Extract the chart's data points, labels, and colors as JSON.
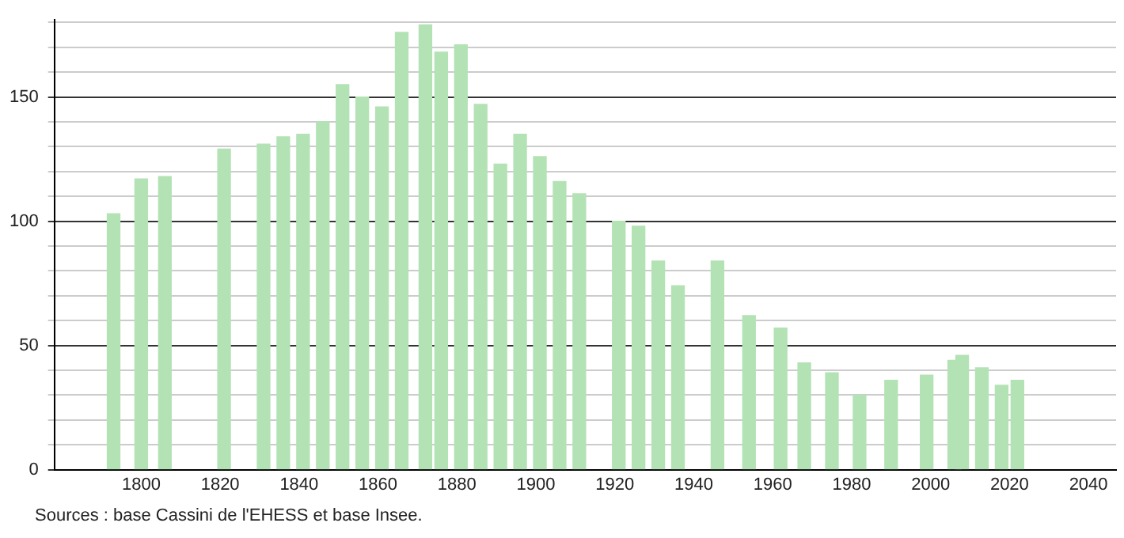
{
  "chart_data": {
    "type": "bar",
    "x": [
      1793,
      1800,
      1806,
      1821,
      1831,
      1836,
      1841,
      1846,
      1851,
      1856,
      1861,
      1866,
      1872,
      1876,
      1881,
      1886,
      1891,
      1896,
      1901,
      1906,
      1911,
      1921,
      1926,
      1931,
      1936,
      1946,
      1954,
      1962,
      1968,
      1975,
      1982,
      1990,
      1999,
      2006,
      2008,
      2013,
      2018,
      2022
    ],
    "values": [
      103,
      117,
      118,
      129,
      131,
      134,
      135,
      140,
      155,
      150,
      146,
      176,
      179,
      168,
      171,
      147,
      123,
      135,
      126,
      116,
      111,
      100,
      98,
      84,
      74,
      84,
      62,
      57,
      43,
      39,
      30,
      36,
      38,
      44,
      46,
      41,
      34,
      36
    ],
    "color": "#b3e3b5",
    "xlim": [
      1778,
      2047
    ],
    "xticks": [
      1800,
      1820,
      1840,
      1860,
      1880,
      1900,
      1920,
      1940,
      1960,
      1980,
      2000,
      2020,
      2040
    ],
    "ylim": [
      0,
      181
    ],
    "yticks": [
      0,
      {
        "value": 10,
        "label": null
      },
      {
        "value": 20,
        "label": null
      },
      {
        "value": 30,
        "label": null
      },
      {
        "value": 40,
        "label": null
      },
      50,
      {
        "value": 60,
        "label": null
      },
      {
        "value": 70,
        "label": null
      },
      {
        "value": 80,
        "label": null
      },
      {
        "value": 90,
        "label": null
      },
      100,
      {
        "value": 110,
        "label": null
      },
      {
        "value": 120,
        "label": null
      },
      {
        "value": 130,
        "label": null
      },
      {
        "value": 140,
        "label": null
      },
      150,
      {
        "value": 160,
        "label": null
      },
      {
        "value": 170,
        "label": null
      },
      {
        "value": 180,
        "label": null
      }
    ],
    "grid": "y",
    "legend": false,
    "annotations": [
      "Sources : base Cassini de l'EHESS et base Insee."
    ]
  }
}
